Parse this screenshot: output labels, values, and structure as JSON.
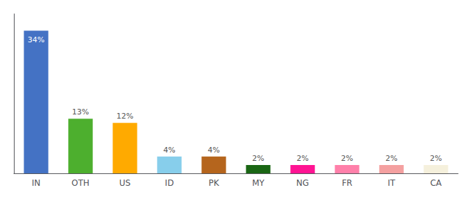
{
  "chart_data": {
    "type": "bar",
    "categories": [
      "IN",
      "OTH",
      "US",
      "ID",
      "PK",
      "MY",
      "NG",
      "FR",
      "IT",
      "CA"
    ],
    "values": [
      34,
      13,
      12,
      4,
      4,
      2,
      2,
      2,
      2,
      2
    ],
    "value_labels": [
      "34%",
      "13%",
      "12%",
      "4%",
      "4%",
      "2%",
      "2%",
      "2%",
      "2%",
      "2%"
    ],
    "data_labels": true,
    "colors": [
      "#4472c4",
      "#4daf2e",
      "#ffaa00",
      "#87ceeb",
      "#b5651d",
      "#1a6614",
      "#ff1493",
      "#ff80aa",
      "#f4a0a0",
      "#f5f0dc"
    ],
    "ylim": [
      0,
      38
    ],
    "grid": false,
    "tick_labels": "x"
  }
}
